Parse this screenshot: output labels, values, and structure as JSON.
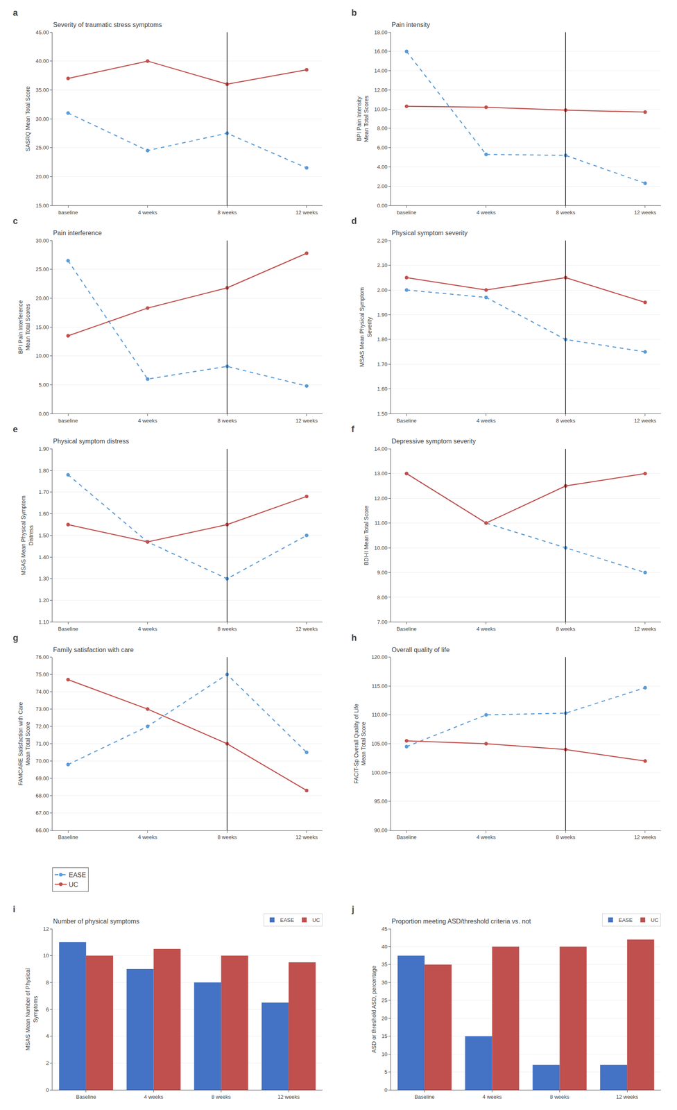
{
  "chart_data": [
    {
      "type": "line",
      "panel_label": "a",
      "title": "Severity of traumatic stress symptoms",
      "y_label": "SASRQ Mean Total Score",
      "categories": [
        "baseline",
        "4 weeks",
        "8 weeks",
        "12 weeks"
      ],
      "series": [
        {
          "name": "EASE",
          "color": "#5b9bd5",
          "line_style": "dashed",
          "marker": "circle",
          "values": [
            31.0,
            24.5,
            27.5,
            21.5
          ]
        },
        {
          "name": "UC",
          "color": "#c0504d",
          "line_style": "solid",
          "marker": "circle",
          "values": [
            37.0,
            40.0,
            36.0,
            38.5
          ]
        }
      ],
      "vline": "8 weeks",
      "ylim": [
        15.0,
        45.0
      ],
      "yticks": [
        {
          "value": 15.0,
          "label": "15.00"
        },
        {
          "value": 20.0,
          "label": "20.00"
        },
        {
          "value": 25.0,
          "label": "25.00"
        },
        {
          "value": 30.0,
          "label": "30.00"
        },
        {
          "value": 35.0,
          "label": "35.00"
        },
        {
          "value": 40.0,
          "label": "40.00"
        },
        {
          "value": 45.0,
          "label": "45.00"
        }
      ],
      "grid": true
    },
    {
      "type": "line",
      "panel_label": "b",
      "title": "Pain intensity",
      "y_label": "BPI Pain Intensity\nMean Total Scores",
      "categories": [
        "baseline",
        "4 weeks",
        "8 weeks",
        "12 weeks"
      ],
      "series": [
        {
          "name": "EASE",
          "color": "#5b9bd5",
          "line_style": "dashed",
          "marker": "circle",
          "values": [
            16.0,
            5.3,
            5.2,
            2.3
          ]
        },
        {
          "name": "UC",
          "color": "#c0504d",
          "line_style": "solid",
          "marker": "circle",
          "values": [
            10.3,
            10.2,
            9.9,
            9.7
          ]
        }
      ],
      "vline": "8 weeks",
      "ylim": [
        0.0,
        18.0
      ],
      "yticks": [
        {
          "value": 0.0,
          "label": "0.00"
        },
        {
          "value": 2.0,
          "label": "2.00"
        },
        {
          "value": 4.0,
          "label": "4.00"
        },
        {
          "value": 6.0,
          "label": "6.00"
        },
        {
          "value": 8.0,
          "label": "8.00"
        },
        {
          "value": 10.0,
          "label": "10.00"
        },
        {
          "value": 12.0,
          "label": "12.00"
        },
        {
          "value": 14.0,
          "label": "14.00"
        },
        {
          "value": 16.0,
          "label": "16.00"
        },
        {
          "value": 18.0,
          "label": "18.00"
        }
      ],
      "grid": true
    },
    {
      "type": "line",
      "panel_label": "c",
      "title": "Pain interference",
      "y_label": "BPI Pain Interference\nMean Total Scores",
      "categories": [
        "baseline",
        "4 weeks",
        "8 weeks",
        "12 weeks"
      ],
      "series": [
        {
          "name": "EASE",
          "color": "#5b9bd5",
          "line_style": "dashed",
          "marker": "circle",
          "values": [
            26.5,
            6.0,
            8.2,
            4.8
          ]
        },
        {
          "name": "UC",
          "color": "#c0504d",
          "line_style": "solid",
          "marker": "circle",
          "values": [
            13.5,
            18.3,
            21.8,
            27.8
          ]
        }
      ],
      "vline": "8 weeks",
      "ylim": [
        0.0,
        30.0
      ],
      "yticks": [
        {
          "value": 0.0,
          "label": "0.00"
        },
        {
          "value": 5.0,
          "label": "5.00"
        },
        {
          "value": 10.0,
          "label": "10.00"
        },
        {
          "value": 15.0,
          "label": "15.00"
        },
        {
          "value": 20.0,
          "label": "20.00"
        },
        {
          "value": 25.0,
          "label": "25.00"
        },
        {
          "value": 30.0,
          "label": "30.00"
        }
      ],
      "grid": true
    },
    {
      "type": "line",
      "panel_label": "d",
      "title": "Physical symptom severity",
      "y_label": "MSAS Mean Physical Symptom\nSeverity",
      "categories": [
        "Baseline",
        "4 weeks",
        "8 weeks",
        "12 weeks"
      ],
      "series": [
        {
          "name": "EASE",
          "color": "#5b9bd5",
          "line_style": "dashed",
          "marker": "circle",
          "values": [
            2.0,
            1.97,
            1.8,
            1.75
          ]
        },
        {
          "name": "UC",
          "color": "#c0504d",
          "line_style": "solid",
          "marker": "circle",
          "values": [
            2.05,
            2.0,
            2.05,
            1.95
          ]
        }
      ],
      "vline": "8 weeks",
      "ylim": [
        1.5,
        2.2
      ],
      "yticks": [
        {
          "value": 1.5,
          "label": "1.50"
        },
        {
          "value": 1.6,
          "label": "1.60"
        },
        {
          "value": 1.7,
          "label": "1.70"
        },
        {
          "value": 1.8,
          "label": "1.80"
        },
        {
          "value": 1.9,
          "label": "1.90"
        },
        {
          "value": 2.0,
          "label": "2.00"
        },
        {
          "value": 2.1,
          "label": "2.10"
        },
        {
          "value": 2.2,
          "label": "2.20"
        }
      ],
      "grid": true
    },
    {
      "type": "line",
      "panel_label": "e",
      "title": "Physical symptom distress",
      "y_label": "MSAS Mean Physical Symptom\nDistress",
      "categories": [
        "Baseline",
        "4 weeks",
        "8 weeks",
        "12 weeks"
      ],
      "series": [
        {
          "name": "EASE",
          "color": "#5b9bd5",
          "line_style": "dashed",
          "marker": "circle",
          "values": [
            1.78,
            1.47,
            1.3,
            1.5
          ]
        },
        {
          "name": "UC",
          "color": "#c0504d",
          "line_style": "solid",
          "marker": "circle",
          "values": [
            1.55,
            1.47,
            1.55,
            1.68
          ]
        }
      ],
      "vline": "8 weeks",
      "ylim": [
        1.1,
        1.9
      ],
      "yticks": [
        {
          "value": 1.1,
          "label": "1.10"
        },
        {
          "value": 1.2,
          "label": "1.20"
        },
        {
          "value": 1.3,
          "label": "1.30"
        },
        {
          "value": 1.4,
          "label": "1.40"
        },
        {
          "value": 1.5,
          "label": "1.50"
        },
        {
          "value": 1.6,
          "label": "1.60"
        },
        {
          "value": 1.7,
          "label": "1.70"
        },
        {
          "value": 1.8,
          "label": "1.80"
        },
        {
          "value": 1.9,
          "label": "1.90"
        }
      ],
      "grid": true
    },
    {
      "type": "line",
      "panel_label": "f",
      "title": "Depressive symptom severity",
      "y_label": "BDI-II Mean Total Score",
      "categories": [
        "Baseline",
        "4 weeks",
        "8 weeks",
        "12 weeks"
      ],
      "series": [
        {
          "name": "EASE",
          "color": "#5b9bd5",
          "line_style": "dashed",
          "marker": "circle",
          "values": [
            13.0,
            11.0,
            10.0,
            9.0
          ]
        },
        {
          "name": "UC",
          "color": "#c0504d",
          "line_style": "solid",
          "marker": "circle",
          "values": [
            13.0,
            11.0,
            12.5,
            13.0
          ]
        }
      ],
      "vline": "8 weeks",
      "ylim": [
        7.0,
        14.0
      ],
      "yticks": [
        {
          "value": 7.0,
          "label": "7.00"
        },
        {
          "value": 8.0,
          "label": "8.00"
        },
        {
          "value": 9.0,
          "label": "9.00"
        },
        {
          "value": 10.0,
          "label": "10.00"
        },
        {
          "value": 11.0,
          "label": "11.00"
        },
        {
          "value": 12.0,
          "label": "12.00"
        },
        {
          "value": 13.0,
          "label": "13.00"
        },
        {
          "value": 14.0,
          "label": "14.00"
        }
      ],
      "grid": true
    },
    {
      "type": "line",
      "panel_label": "g",
      "title": "Family satisfaction with care",
      "y_label": "FAMCARE Satisfaction with Care\nMean Total Score",
      "categories": [
        "Baseline",
        "4 weeks",
        "8 weeks",
        "12 weeks"
      ],
      "series": [
        {
          "name": "EASE",
          "color": "#5b9bd5",
          "line_style": "dashed",
          "marker": "circle",
          "values": [
            69.8,
            72.0,
            75.0,
            70.5
          ]
        },
        {
          "name": "UC",
          "color": "#c0504d",
          "line_style": "solid",
          "marker": "circle",
          "values": [
            74.7,
            73.0,
            71.0,
            68.3
          ]
        }
      ],
      "vline": "8 weeks",
      "ylim": [
        66.0,
        76.0
      ],
      "yticks": [
        {
          "value": 66.0,
          "label": "66.00"
        },
        {
          "value": 67.0,
          "label": "67.00"
        },
        {
          "value": 68.0,
          "label": "68.00"
        },
        {
          "value": 69.0,
          "label": "69.00"
        },
        {
          "value": 70.0,
          "label": "70.00"
        },
        {
          "value": 71.0,
          "label": "71.00"
        },
        {
          "value": 72.0,
          "label": "72.00"
        },
        {
          "value": 73.0,
          "label": "73.00"
        },
        {
          "value": 74.0,
          "label": "74.00"
        },
        {
          "value": 75.0,
          "label": "75.00"
        },
        {
          "value": 76.0,
          "label": "76.00"
        }
      ],
      "grid": true,
      "legend": "below"
    },
    {
      "type": "line",
      "panel_label": "h",
      "title": "Overall quality of life",
      "y_label": "FACIT-Sp Overall Quality of Life\nMean Total Score",
      "categories": [
        "Baseline",
        "4 weeks",
        "8 weeks",
        "12 weeks"
      ],
      "series": [
        {
          "name": "EASE",
          "color": "#5b9bd5",
          "line_style": "dashed",
          "marker": "circle",
          "values": [
            104.5,
            110.0,
            110.3,
            114.7
          ]
        },
        {
          "name": "UC",
          "color": "#c0504d",
          "line_style": "solid",
          "marker": "circle",
          "values": [
            105.5,
            105.0,
            104.0,
            102.0
          ]
        }
      ],
      "vline": "8 weeks",
      "ylim": [
        90.0,
        120.0
      ],
      "yticks": [
        {
          "value": 90.0,
          "label": "90.00"
        },
        {
          "value": 95.0,
          "label": "95.00"
        },
        {
          "value": 100.0,
          "label": "100.00"
        },
        {
          "value": 105.0,
          "label": "105.00"
        },
        {
          "value": 110.0,
          "label": "110.00"
        },
        {
          "value": 115.0,
          "label": "115.00"
        },
        {
          "value": 120.0,
          "label": "120.00"
        }
      ],
      "grid": true
    },
    {
      "type": "bar",
      "panel_label": "i",
      "title": "Number of physical symptoms",
      "y_label": "MSAS Mean Number of Physical\nSymptoms",
      "categories": [
        "Baseline",
        "4 weeks",
        "8 weeks",
        "12 weeks"
      ],
      "series": [
        {
          "name": "EASE",
          "color": "#4472c4",
          "values": [
            11.0,
            9.0,
            8.0,
            6.5
          ]
        },
        {
          "name": "UC",
          "color": "#c0504d",
          "values": [
            10.0,
            10.5,
            10.0,
            9.5
          ]
        }
      ],
      "ylim": [
        0,
        12
      ],
      "yticks": [
        0,
        2,
        4,
        6,
        8,
        10,
        12
      ],
      "grid": true,
      "legend": "upper right"
    },
    {
      "type": "bar",
      "panel_label": "j",
      "title": "Proportion meeting ASD/threshold criteria vs. not",
      "y_label": "ASD or threshold ASD, percentage",
      "categories": [
        "Baseline",
        "4 weeks",
        "8 weeks",
        "12 weeks"
      ],
      "series": [
        {
          "name": "EASE",
          "color": "#4472c4",
          "values": [
            37.5,
            15.0,
            7.0,
            7.0
          ]
        },
        {
          "name": "UC",
          "color": "#c0504d",
          "values": [
            35.0,
            40.0,
            40.0,
            42.0
          ]
        }
      ],
      "ylim": [
        0,
        45
      ],
      "yticks": [
        0,
        5,
        10,
        15,
        20,
        25,
        30,
        35,
        40,
        45
      ],
      "grid": true,
      "legend": "upper right"
    }
  ]
}
